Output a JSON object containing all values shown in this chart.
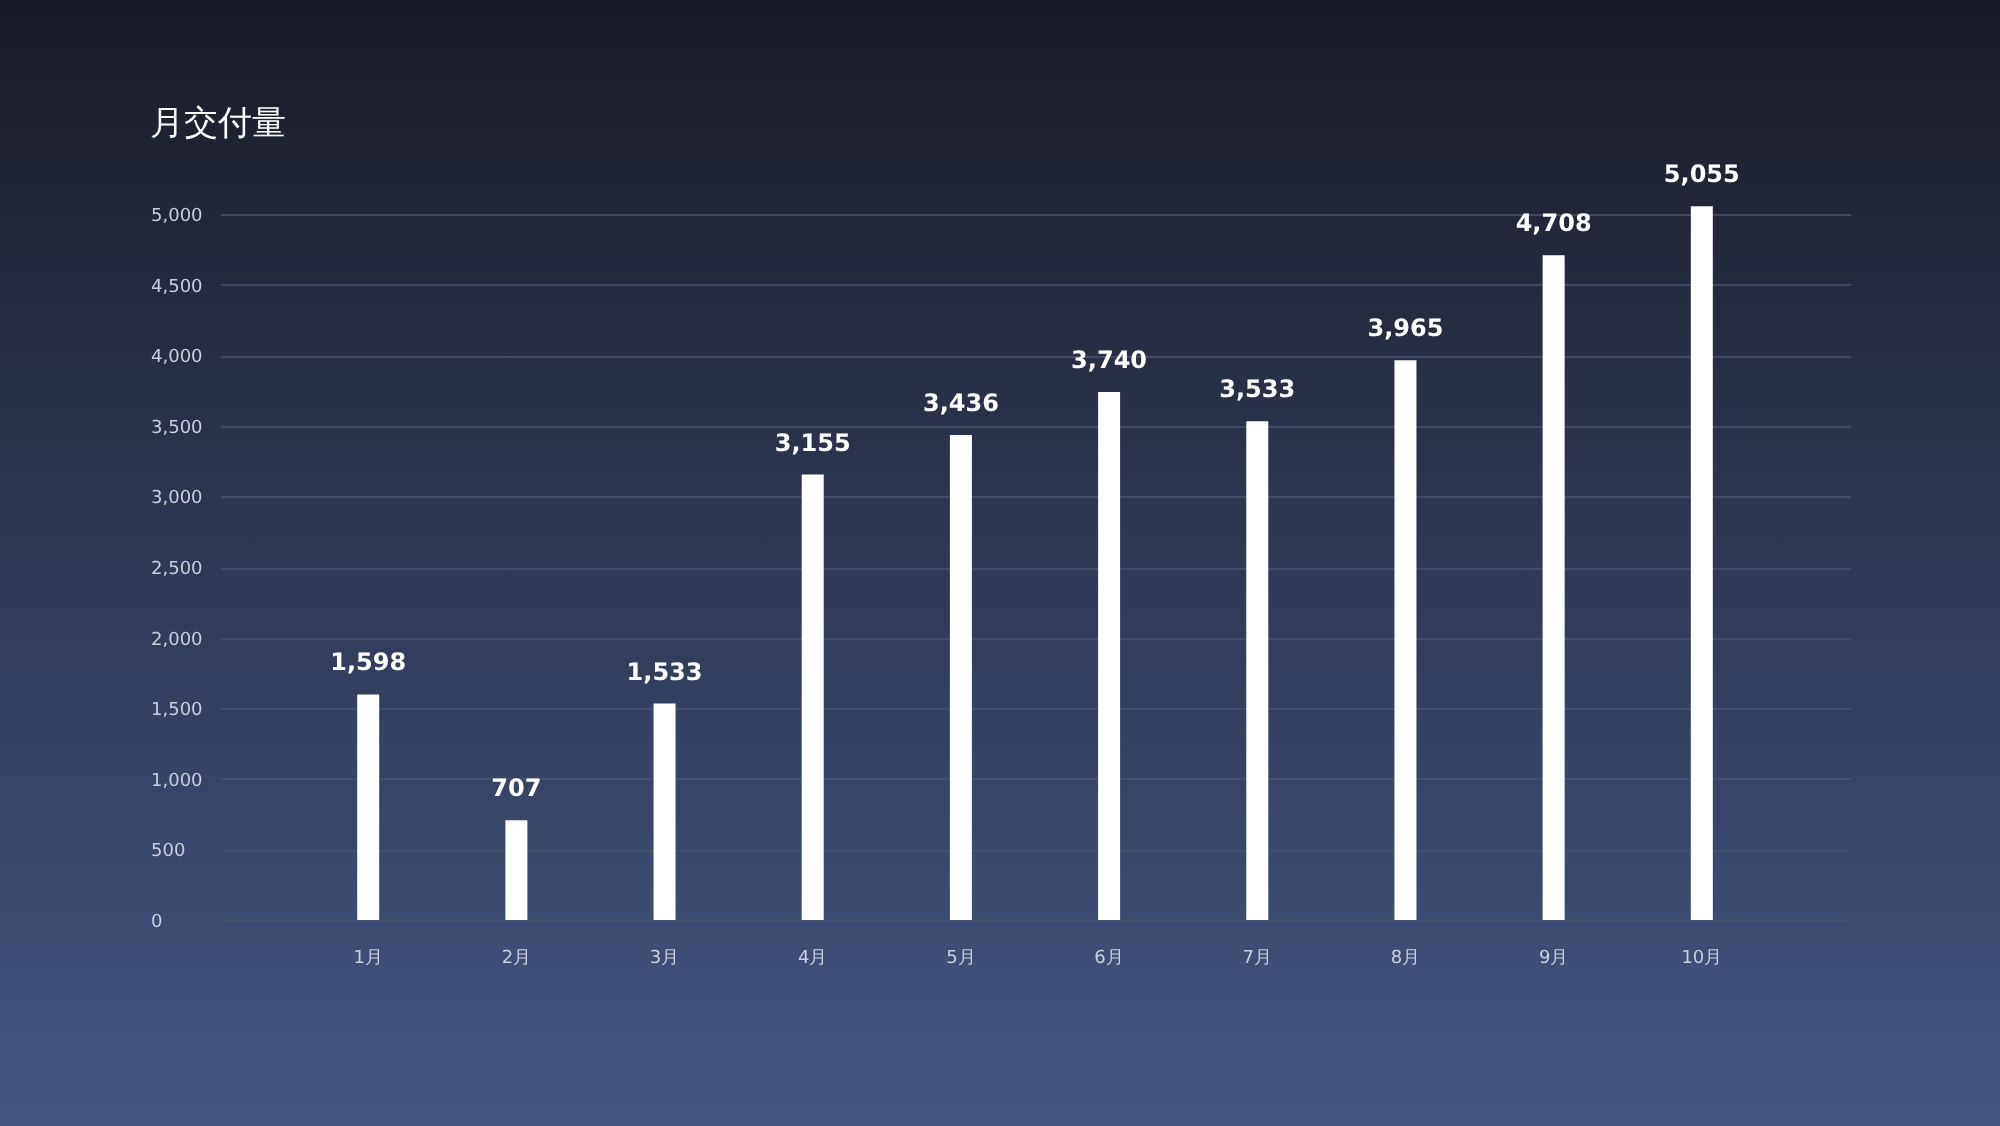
{
  "chart_data": {
    "type": "bar",
    "title": "月交付量",
    "categories": [
      "1月",
      "2月",
      "3月",
      "4月",
      "5月",
      "6月",
      "7月",
      "8月",
      "9月",
      "10月"
    ],
    "values": [
      1598,
      707,
      1533,
      3155,
      3436,
      3740,
      3533,
      3965,
      4708,
      5055
    ],
    "value_labels": [
      "1,598",
      "707",
      "1,533",
      "3,155",
      "3,436",
      "3,740",
      "3,533",
      "3,965",
      "4,708",
      "5,055"
    ],
    "color": "#ffffff",
    "ylim": [
      0,
      5100
    ],
    "yticks": [
      0,
      500,
      {
        "value": 1000,
        "label": "1,000"
      },
      {
        "value": 1500,
        "label": "1,500"
      },
      {
        "value": 2000,
        "label": "2,000"
      },
      {
        "value": 2500,
        "label": "2,500"
      },
      {
        "value": 3000,
        "label": "3,000"
      },
      {
        "value": 3500,
        "label": "3,500"
      },
      {
        "value": 4000,
        "label": "4,000"
      },
      {
        "value": 4500,
        "label": "4,500"
      },
      {
        "value": 5000,
        "label": "5,000"
      }
    ],
    "grid": "y"
  }
}
